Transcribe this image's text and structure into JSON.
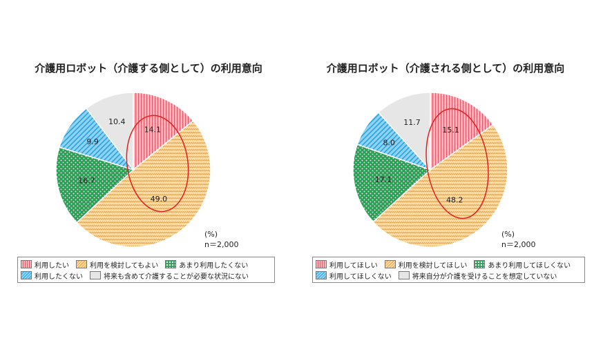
{
  "chart_data": [
    {
      "type": "pie",
      "title": "介護用ロボット（介護する側として）の利用意向",
      "unit_label": "(%)",
      "n_label": "n＝2,000",
      "slices": [
        {
          "label": "利用したい",
          "value": 14.1,
          "display": "14.1"
        },
        {
          "label": "利用を検討してもよい",
          "value": 49.0,
          "display": "49.0"
        },
        {
          "label": "あまり利用したくない",
          "value": 16.7,
          "display": "16.7"
        },
        {
          "label": "利用したくない",
          "value": 9.9,
          "display": "9.9"
        },
        {
          "label": "将来も含めて介護することが必要な状況にない",
          "value": 10.4,
          "display": "10.4"
        }
      ]
    },
    {
      "type": "pie",
      "title": "介護用ロボット（介護される側として）の利用意向",
      "unit_label": "(%)",
      "n_label": "n＝2,000",
      "slices": [
        {
          "label": "利用してほしい",
          "value": 15.1,
          "display": "15.1"
        },
        {
          "label": "利用を検討してほしい",
          "value": 48.2,
          "display": "48.2"
        },
        {
          "label": "あまり利用してほしくない",
          "value": 17.1,
          "display": "17.1"
        },
        {
          "label": "利用してほしくない",
          "value": 8.0,
          "display": "8.0"
        },
        {
          "label": "将来自分が介護を受けることを想定していない",
          "value": 11.7,
          "display": "11.7"
        }
      ]
    }
  ],
  "colors": {
    "want": "#f3a0aa",
    "consider": "#f8c97a",
    "rather_not": "#2f9e57",
    "not": "#5bbce8",
    "not_applicable": "#e6e6e6",
    "highlight_ellipse": "#e02020"
  }
}
